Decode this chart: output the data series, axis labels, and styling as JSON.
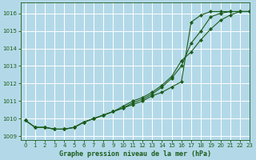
{
  "title": "Graphe pression niveau de la mer (hPa)",
  "bg_color": "#b3d9e8",
  "grid_color": "#ffffff",
  "line_color": "#1a5c1a",
  "xlim": [
    -0.5,
    23
  ],
  "ylim": [
    1008.8,
    1016.6
  ],
  "yticks": [
    1009,
    1010,
    1011,
    1012,
    1013,
    1014,
    1015,
    1016
  ],
  "xticks": [
    0,
    1,
    2,
    3,
    4,
    5,
    6,
    7,
    8,
    9,
    10,
    11,
    12,
    13,
    14,
    15,
    16,
    17,
    18,
    19,
    20,
    21,
    22,
    23
  ],
  "series": [
    [
      1009.9,
      1009.5,
      1009.5,
      1009.4,
      1009.4,
      1009.5,
      1009.8,
      1010.0,
      1010.2,
      1010.4,
      1010.6,
      1010.8,
      1011.0,
      1011.3,
      1011.5,
      1011.8,
      1012.1,
      1015.5,
      1015.9,
      1016.1,
      1016.1,
      1016.1,
      1016.1,
      1016.1
    ],
    [
      1009.9,
      1009.5,
      1009.5,
      1009.4,
      1009.4,
      1009.5,
      1009.8,
      1010.0,
      1010.2,
      1010.4,
      1010.6,
      1010.9,
      1011.1,
      1011.4,
      1011.8,
      1012.3,
      1013.0,
      1014.3,
      1015.0,
      1015.8,
      1016.0,
      1016.1,
      1016.1,
      1016.1
    ],
    [
      1009.9,
      1009.5,
      1009.5,
      1009.4,
      1009.4,
      1009.5,
      1009.8,
      1010.0,
      1010.2,
      1010.4,
      1010.7,
      1011.0,
      1011.2,
      1011.5,
      1011.9,
      1012.4,
      1013.3,
      1013.8,
      1014.5,
      1015.1,
      1015.6,
      1015.9,
      1016.1,
      1016.1
    ]
  ]
}
